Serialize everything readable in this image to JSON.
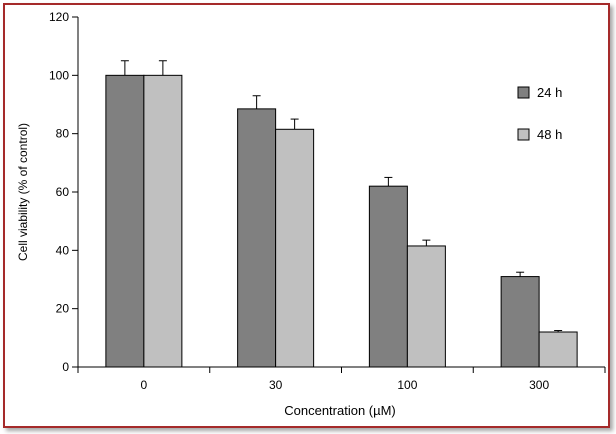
{
  "chart_data": {
    "type": "bar",
    "title": "",
    "xlabel": "Concentration (µM)",
    "ylabel": "Cell viability (% of control)",
    "categories": [
      "0",
      "30",
      "100",
      "300"
    ],
    "ylim": [
      0,
      120
    ],
    "yticks": [
      0,
      20,
      40,
      60,
      80,
      100,
      120
    ],
    "grid": false,
    "legend_position": "right",
    "series": [
      {
        "name": "24 h",
        "values": [
          100,
          88.5,
          62,
          31
        ],
        "errors": [
          5,
          4.5,
          3,
          1.5
        ],
        "color": "#808080"
      },
      {
        "name": "48 h",
        "values": [
          100,
          81.5,
          41.5,
          12
        ],
        "errors": [
          5,
          3.5,
          2,
          0.5
        ],
        "color": "#c0c0c0"
      }
    ]
  },
  "colors": {
    "frame_border": "#a52a2a"
  }
}
